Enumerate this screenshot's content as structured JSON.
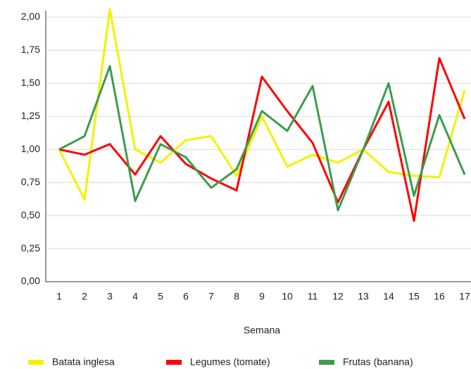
{
  "chart_data": {
    "type": "line",
    "x_label": "Semana",
    "categories": [
      "1",
      "2",
      "3",
      "4",
      "5",
      "6",
      "7",
      "8",
      "9",
      "10",
      "11",
      "12",
      "13",
      "14",
      "15",
      "16",
      "17"
    ],
    "series": [
      {
        "name": "Batata inglesa",
        "color": "#f2f200",
        "values": [
          1.0,
          0.62,
          2.06,
          1.0,
          0.9,
          1.07,
          1.1,
          0.8,
          1.25,
          0.87,
          0.96,
          0.9,
          1.0,
          0.83,
          0.8,
          0.79,
          1.45
        ]
      },
      {
        "name": "Legumes (tomate)",
        "color": "#ff0000",
        "values": [
          1.0,
          0.96,
          1.04,
          0.81,
          1.1,
          0.89,
          0.78,
          0.69,
          1.55,
          1.29,
          1.05,
          0.6,
          1.0,
          1.36,
          0.46,
          1.69,
          1.23
        ]
      },
      {
        "name": "Frutas (banana)",
        "color": "#3c9c4c",
        "values": [
          1.0,
          1.1,
          1.63,
          0.61,
          1.04,
          0.94,
          0.71,
          0.85,
          1.29,
          1.14,
          1.48,
          0.54,
          1.0,
          1.5,
          0.65,
          1.26,
          0.81
        ]
      }
    ],
    "ylim": [
      0,
      2.05
    ],
    "yticks": [
      {
        "value": 0,
        "label": "0,00"
      },
      {
        "value": 0.25,
        "label": "0,25"
      },
      {
        "value": 0.5,
        "label": "0,50"
      },
      {
        "value": 0.75,
        "label": "0,75"
      },
      {
        "value": 1,
        "label": "1,00"
      },
      {
        "value": 1.25,
        "label": "1,25"
      },
      {
        "value": 1.5,
        "label": "1,50"
      },
      {
        "value": 1.75,
        "label": "1,75"
      },
      {
        "value": 2,
        "label": "2,00"
      }
    ],
    "grid": true,
    "legend": "bottom"
  }
}
